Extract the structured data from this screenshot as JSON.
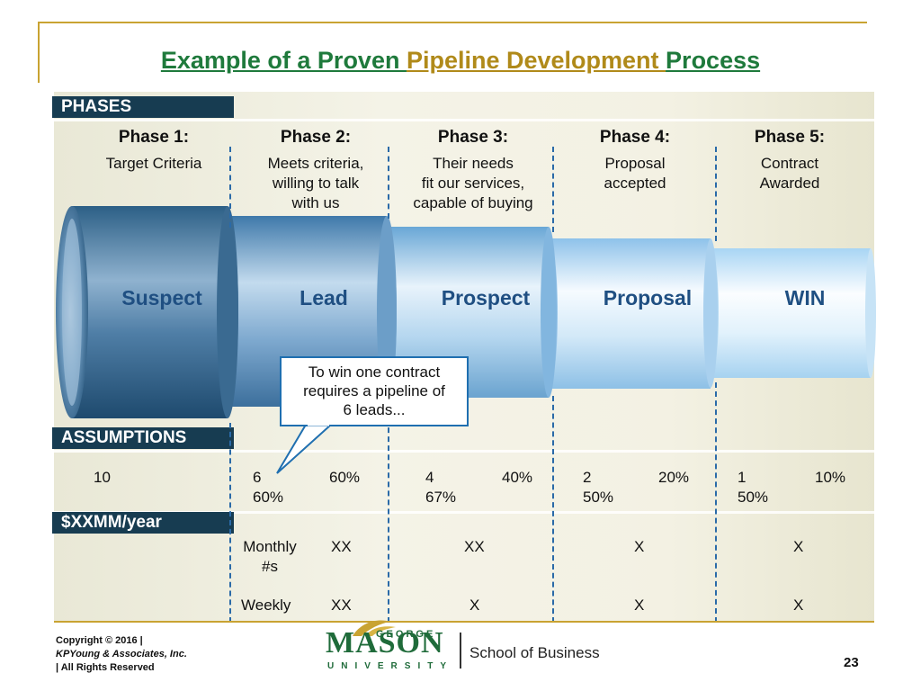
{
  "slide": {
    "title_part1": "Example of a Proven ",
    "title_part2": "Pipeline Development ",
    "title_part3": "Process",
    "colors": {
      "title_green": "#1f7a3c",
      "title_gold": "#b08a1a",
      "label_bar": "#173c51",
      "accent_line": "#c9a332",
      "stage_text": "#1f4f82"
    }
  },
  "labels": {
    "phases": "PHASES",
    "assumptions": "ASSUMPTIONS",
    "revenue": "$XXMM/year"
  },
  "phases": [
    {
      "head": "Phase 1:",
      "desc": "Target Criteria"
    },
    {
      "head": "Phase 2:",
      "desc": "Meets criteria,\nwilling to talk\nwith us"
    },
    {
      "head": "Phase 3:",
      "desc": "Their needs\nfit our services,\ncapable of buying"
    },
    {
      "head": "Phase 4:",
      "desc": "Proposal\naccepted"
    },
    {
      "head": "Phase 5:",
      "desc": "Contract\nAwarded"
    }
  ],
  "stages": [
    "Suspect",
    "Lead",
    "Prospect",
    "Proposal",
    "WIN"
  ],
  "callout": "To win one contract\nrequires a pipeline of\n6 leads...",
  "assumptions": {
    "c1": "10",
    "c2_count": "6",
    "c2_pct_a": "60%",
    "c2_pct_b": "60%",
    "c3_count": "4",
    "c3_pct_a": "40%",
    "c3_pct_b": "67%",
    "c4_count": "2",
    "c4_pct_a": "20%",
    "c4_pct_b": "50%",
    "c5_count": "1",
    "c5_pct_a": "10%",
    "c5_pct_b": "50%"
  },
  "revenue_rows": {
    "monthly_label": "Monthly\n#s",
    "monthly": [
      "XX",
      "XX",
      "X",
      "X"
    ],
    "weekly_label": "Weekly",
    "weekly": [
      "XX",
      "X",
      "X",
      "X"
    ]
  },
  "footer": {
    "copyright": "Copyright © 2016 |",
    "company": "KPYoung & Associates, Inc.",
    "rights": "| All Rights Reserved",
    "page": "23",
    "logo_george": "GEORGE",
    "logo_mason": "MASON",
    "logo_university": "UNIVERSITY",
    "school": "School of Business"
  }
}
